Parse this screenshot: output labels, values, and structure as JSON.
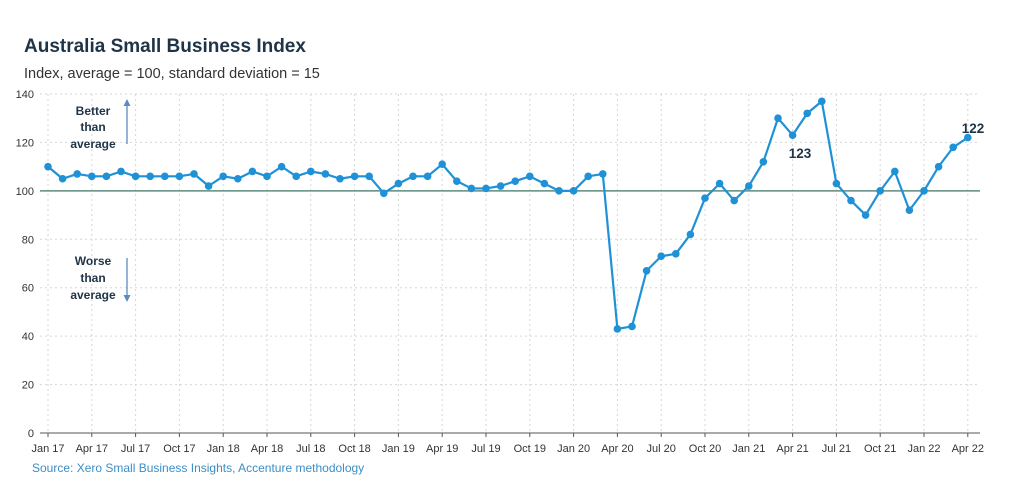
{
  "chart_data": {
    "type": "line",
    "title": "Australia Small Business Index",
    "subtitle": "Index, average = 100, standard deviation = 15",
    "source": "Source: Xero Small Business Insights, Accenture methodology",
    "ylim": [
      0,
      140
    ],
    "yticks": [
      0,
      20,
      40,
      60,
      80,
      100,
      120,
      140
    ],
    "reference_line": 100,
    "x_tick_labels": [
      "Jan 17",
      "Apr 17",
      "Jul 17",
      "Oct 17",
      "Jan 18",
      "Apr 18",
      "Jul 18",
      "Oct 18",
      "Jan 19",
      "Apr 19",
      "Jul 19",
      "Oct 19",
      "Jan 20",
      "Apr 20",
      "Jul 20",
      "Oct 20",
      "Jan 21",
      "Apr 21",
      "Jul 21",
      "Oct 21",
      "Jan 22",
      "Apr 22"
    ],
    "grid": true,
    "color": "#1f91d6",
    "series": [
      {
        "name": "",
        "values": [
          110,
          105,
          107,
          106,
          106,
          108,
          106,
          106,
          106,
          106,
          107,
          102,
          106,
          105,
          108,
          106,
          110,
          106,
          108,
          107,
          105,
          106,
          106,
          99,
          103,
          106,
          106,
          111,
          104,
          101,
          101,
          102,
          104,
          106,
          103,
          100,
          100,
          106,
          107,
          43,
          44,
          67,
          73,
          74,
          82,
          97,
          103,
          96,
          102,
          112,
          130,
          123,
          132,
          137,
          103,
          96,
          90,
          100,
          108,
          92,
          100,
          110,
          118,
          122
        ]
      }
    ],
    "annotations": {
      "better": [
        "Better",
        "than",
        "average"
      ],
      "worse": [
        "Worse",
        "than",
        "average"
      ],
      "label_apr21": "123",
      "label_apr22": "122"
    }
  }
}
